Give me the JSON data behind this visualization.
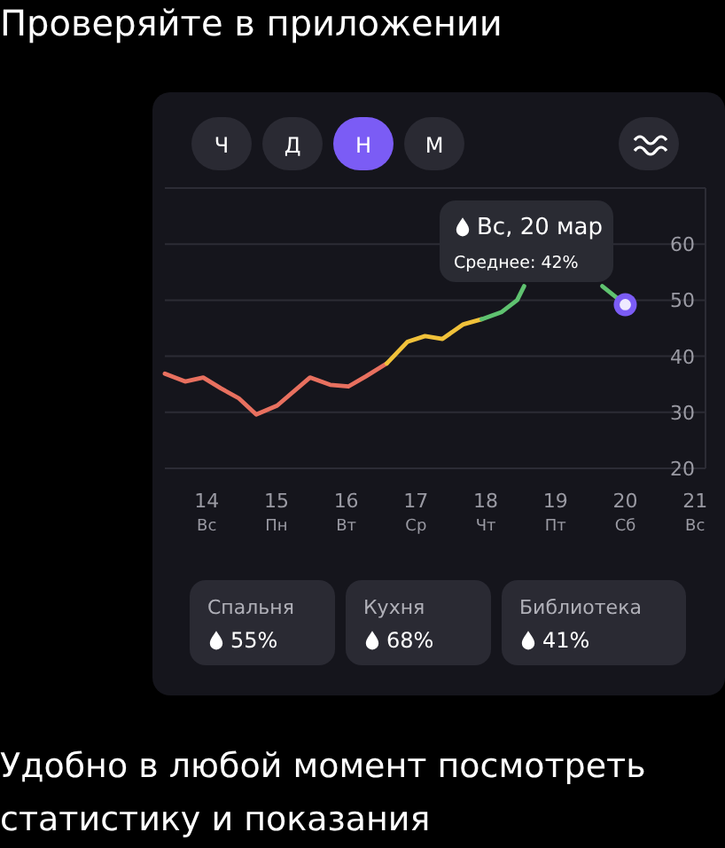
{
  "chart_data": {
    "type": "line",
    "title": "Проверяйте в приложении",
    "xlim": [
      13.4,
      21.15
    ],
    "ylim": [
      20,
      70
    ],
    "xticks": [
      {
        "value": 14,
        "label": "14\nВс"
      },
      {
        "value": 15,
        "label": "15\nПн"
      },
      {
        "value": 16,
        "label": "16\nВт"
      },
      {
        "value": 17,
        "label": "17\nСр"
      },
      {
        "value": 18,
        "label": "18\nЧт"
      },
      {
        "value": 19,
        "label": "19\nПт"
      },
      {
        "value": 20,
        "label": "20\nСб"
      },
      {
        "value": 21,
        "label": "21\nВс"
      }
    ],
    "yticks": [
      20,
      30,
      40,
      50,
      60,
      {
        "value": 70,
        "label": null
      }
    ],
    "grid": "y",
    "marker": "none",
    "line_style": "solid",
    "series": [
      {
        "color": "#e8705f",
        "x": [
          13.4,
          13.69,
          13.95,
          14.2,
          14.46,
          14.71,
          15.01,
          15.48,
          15.77,
          16.03,
          16.28,
          16.58
        ],
        "values": [
          36.9,
          35.5,
          36.2,
          34.3,
          32.5,
          29.6,
          31.2,
          36.2,
          34.9,
          34.6,
          36.4,
          38.7
        ]
      },
      {
        "color": "#f0c13a",
        "x": [
          16.58,
          16.88,
          17.13,
          17.38,
          17.68,
          17.94
        ],
        "values": [
          38.7,
          42.6,
          43.6,
          43.1,
          45.7,
          46.6
        ]
      },
      {
        "color": "#5fc270",
        "x": [
          17.94,
          18.23,
          18.45,
          18.55,
          19.1,
          19.67,
          20
        ],
        "values": [
          46.6,
          47.9,
          50,
          52.5,
          null,
          52.5,
          49.2
        ]
      }
    ],
    "annotations": [
      {
        "text": "Вс, 20 мар",
        "x": 20,
        "y": 49.2
      },
      "Среднее: 42%",
      "Ч",
      "Д",
      "Н",
      "М",
      "Спальня",
      "55%",
      "Кухня",
      "68%",
      "Библиотека",
      "41%",
      "Удобно в любой момент посмотреть статистику и показания"
    ]
  }
}
